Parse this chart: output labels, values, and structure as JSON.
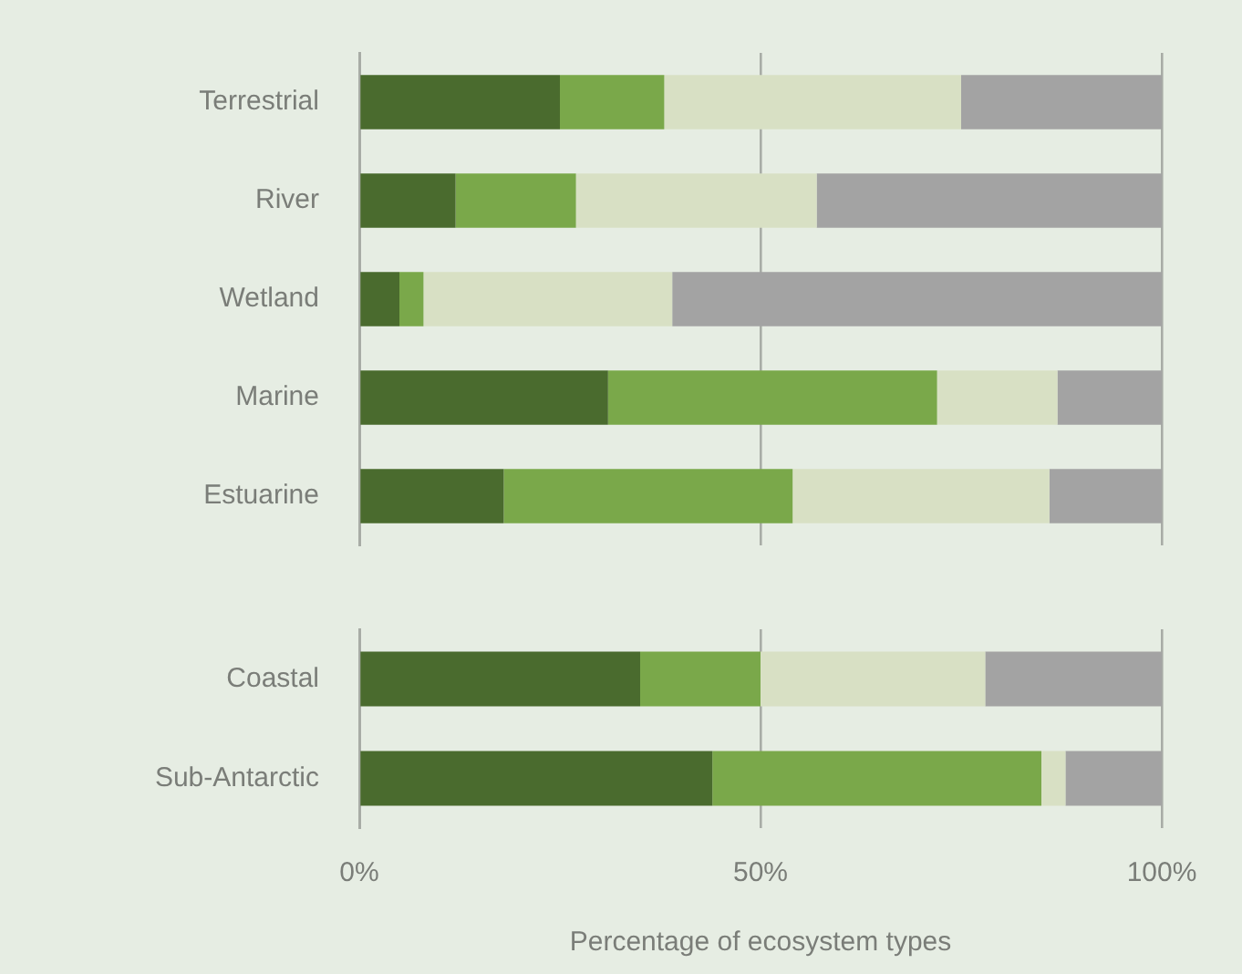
{
  "chart_data": [
    {
      "type": "bar",
      "orientation": "horizontal",
      "stacked": true,
      "categories": [
        "Terrestrial",
        "River",
        "Wetland",
        "Marine",
        "Estuarine"
      ],
      "series": [
        {
          "color": "#4a6b2e",
          "values": [
            25,
            12,
            5,
            31,
            18
          ]
        },
        {
          "color": "#7aa84a",
          "values": [
            13,
            15,
            3,
            41,
            36
          ]
        },
        {
          "color": "#d8e0c4",
          "values": [
            37,
            30,
            31,
            15,
            32
          ]
        },
        {
          "color": "#a3a3a3",
          "values": [
            25,
            43,
            61,
            13,
            14
          ]
        }
      ],
      "xlim": [
        0,
        100
      ],
      "xticks": [
        {
          "value": 0,
          "label": null
        },
        {
          "value": 50,
          "label": null
        },
        {
          "value": 100,
          "label": null
        }
      ],
      "grid": "x",
      "tick_labels": "y"
    },
    {
      "type": "bar",
      "orientation": "horizontal",
      "stacked": true,
      "categories": [
        "Coastal",
        "Sub-Antarctic"
      ],
      "series": [
        {
          "color": "#4a6b2e",
          "values": [
            35,
            44
          ]
        },
        {
          "color": "#7aa84a",
          "values": [
            15,
            41
          ]
        },
        {
          "color": "#d8e0c4",
          "values": [
            28,
            3
          ]
        },
        {
          "color": "#a3a3a3",
          "values": [
            22,
            12
          ]
        }
      ],
      "xlim": [
        0,
        100
      ],
      "xticks": [
        {
          "value": 0,
          "label": "0%"
        },
        {
          "value": 50,
          "label": "50%"
        },
        {
          "value": 100,
          "label": "100%"
        }
      ],
      "grid": "x",
      "xlabel": "Percentage of ecosystem types"
    }
  ]
}
